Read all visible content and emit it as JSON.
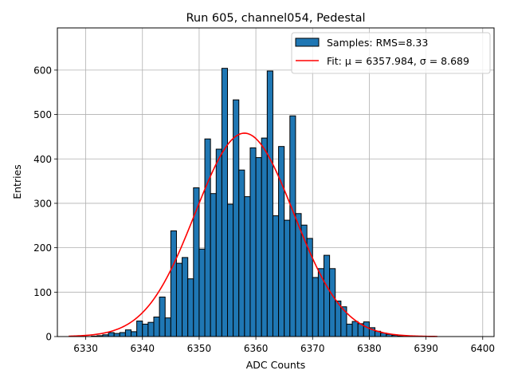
{
  "chart_data": {
    "type": "bar",
    "title": "Run 605, channel054, Pedestal",
    "xlabel": "ADC Counts",
    "ylabel": "Entries",
    "xlim": [
      6325,
      6402
    ],
    "ylim": [
      0,
      695
    ],
    "xticks": [
      6330,
      6340,
      6350,
      6360,
      6370,
      6380,
      6390,
      6400
    ],
    "yticks": [
      0,
      100,
      200,
      300,
      400,
      500,
      600
    ],
    "grid": true,
    "legend_position": "top-right",
    "bin_width": 1,
    "series": [
      {
        "name": "Samples: RMS=8.33",
        "kind": "histogram",
        "color": "#1f77b4",
        "edge_color": "#000000",
        "bins": [
          6331,
          6332,
          6333,
          6334,
          6335,
          6336,
          6337,
          6338,
          6339,
          6340,
          6341,
          6342,
          6343,
          6344,
          6345,
          6346,
          6347,
          6348,
          6349,
          6350,
          6351,
          6352,
          6353,
          6354,
          6355,
          6356,
          6357,
          6358,
          6359,
          6360,
          6361,
          6362,
          6363,
          6364,
          6365,
          6366,
          6367,
          6368,
          6369,
          6370,
          6371,
          6372,
          6373,
          6374,
          6375,
          6376,
          6377,
          6378,
          6379,
          6380,
          6381,
          6382,
          6383,
          6384,
          6385
        ],
        "values": [
          1,
          2,
          4,
          9,
          7,
          9,
          15,
          11,
          35,
          28,
          32,
          44,
          89,
          42,
          238,
          165,
          178,
          130,
          335,
          197,
          445,
          322,
          422,
          604,
          298,
          533,
          375,
          315,
          425,
          403,
          447,
          598,
          272,
          428,
          262,
          497,
          277,
          251,
          221,
          133,
          153,
          183,
          153,
          80,
          67,
          28,
          34,
          29,
          33,
          20,
          12,
          8,
          5,
          3,
          1
        ]
      },
      {
        "name": "Fit: μ = 6357.984, σ = 8.689",
        "kind": "gaussian-fit",
        "color": "#ff0000",
        "mu": 6357.984,
        "sigma": 8.689,
        "peak": 458,
        "x_range": [
          6327,
          6392
        ]
      }
    ]
  }
}
